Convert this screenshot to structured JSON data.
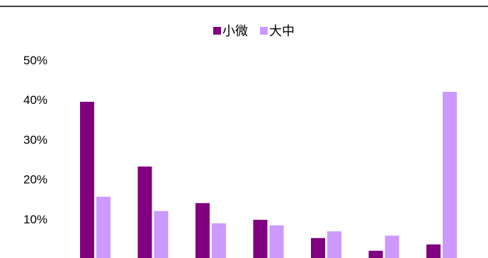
{
  "chart_data": {
    "type": "bar",
    "categories": [
      "",
      "",
      "",
      "",
      "",
      "",
      ""
    ],
    "series": [
      {
        "name": "小微",
        "color": "#800080",
        "values": [
          39.5,
          23.2,
          14.0,
          9.8,
          5.2,
          2.0,
          3.6
        ]
      },
      {
        "name": "大中",
        "color": "#CC99FF",
        "values": [
          15.6,
          12.0,
          8.9,
          8.4,
          6.9,
          5.8,
          42.0
        ]
      }
    ],
    "ylim": [
      0,
      50
    ],
    "yticks": [
      10,
      20,
      30,
      40,
      50
    ],
    "ytick_labels": [
      "10%",
      "20%",
      "30%",
      "40%",
      "50%"
    ],
    "title": "",
    "xlabel": "",
    "ylabel": "",
    "grid": false,
    "legend": "top-center"
  }
}
